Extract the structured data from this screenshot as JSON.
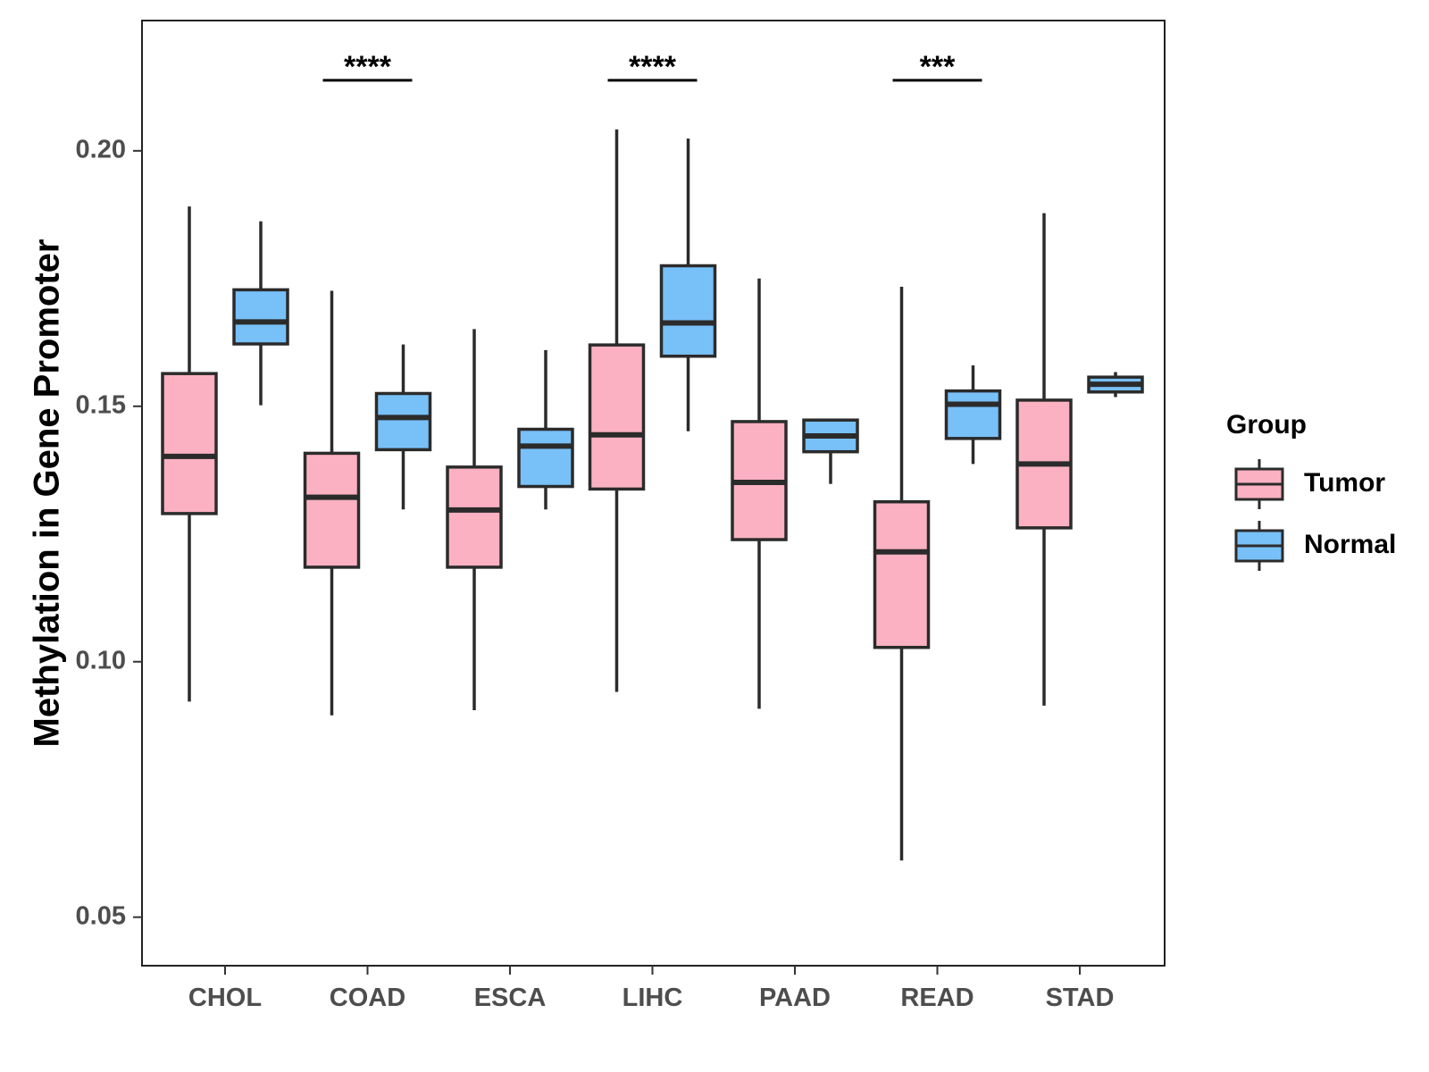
{
  "chart_data": {
    "type": "boxplot",
    "ylabel": "Methylation in Gene Promoter",
    "xlabel": "",
    "ylim": [
      0.0405,
      0.2255
    ],
    "yticks": [
      0.05,
      0.1,
      0.15,
      0.2
    ],
    "ytick_labels": [
      "0.05",
      "0.10",
      "0.15",
      "0.20"
    ],
    "categories": [
      "CHOL",
      "COAD",
      "ESCA",
      "LIHC",
      "PAAD",
      "READ",
      "STAD"
    ],
    "legend": {
      "title": "Group",
      "position": "right",
      "entries": [
        {
          "name": "Tumor",
          "color": "#FBB1C1"
        },
        {
          "name": "Normal",
          "color": "#78C0F8"
        }
      ]
    },
    "series": [
      {
        "name": "Tumor",
        "color": "#FBB1C1",
        "boxes": [
          {
            "min": 0.0922,
            "q1": 0.129,
            "median": 0.1402,
            "q3": 0.1564,
            "max": 0.1891
          },
          {
            "min": 0.0895,
            "q1": 0.1185,
            "median": 0.1322,
            "q3": 0.1408,
            "max": 0.1726
          },
          {
            "min": 0.0905,
            "q1": 0.1185,
            "median": 0.1297,
            "q3": 0.1381,
            "max": 0.1651
          },
          {
            "min": 0.0941,
            "q1": 0.1338,
            "median": 0.1444,
            "q3": 0.162,
            "max": 0.2042
          },
          {
            "min": 0.0908,
            "q1": 0.1239,
            "median": 0.1351,
            "q3": 0.147,
            "max": 0.175
          },
          {
            "min": 0.0611,
            "q1": 0.1028,
            "median": 0.1215,
            "q3": 0.1313,
            "max": 0.1734
          },
          {
            "min": 0.0914,
            "q1": 0.1262,
            "median": 0.1387,
            "q3": 0.1512,
            "max": 0.1878
          }
        ]
      },
      {
        "name": "Normal",
        "color": "#78C0F8",
        "boxes": [
          {
            "min": 0.1502,
            "q1": 0.1622,
            "median": 0.1665,
            "q3": 0.1728,
            "max": 0.1862
          },
          {
            "min": 0.1298,
            "q1": 0.1415,
            "median": 0.1478,
            "q3": 0.1525,
            "max": 0.1621
          },
          {
            "min": 0.1298,
            "q1": 0.1343,
            "median": 0.1422,
            "q3": 0.1455,
            "max": 0.161
          },
          {
            "min": 0.1451,
            "q1": 0.1598,
            "median": 0.1663,
            "q3": 0.1775,
            "max": 0.2024
          },
          {
            "min": 0.1348,
            "q1": 0.1411,
            "median": 0.1442,
            "q3": 0.1473,
            "max": 0.1476
          },
          {
            "min": 0.1387,
            "q1": 0.1437,
            "median": 0.1504,
            "q3": 0.153,
            "max": 0.158
          },
          {
            "min": 0.1518,
            "q1": 0.1528,
            "median": 0.1543,
            "q3": 0.1557,
            "max": 0.1567
          }
        ]
      }
    ],
    "significance": [
      {
        "category": "COAD",
        "label": "****",
        "y": 0.2138
      },
      {
        "category": "LIHC",
        "label": "****",
        "y": 0.2138
      },
      {
        "category": "READ",
        "label": "***",
        "y": 0.2138
      }
    ]
  }
}
